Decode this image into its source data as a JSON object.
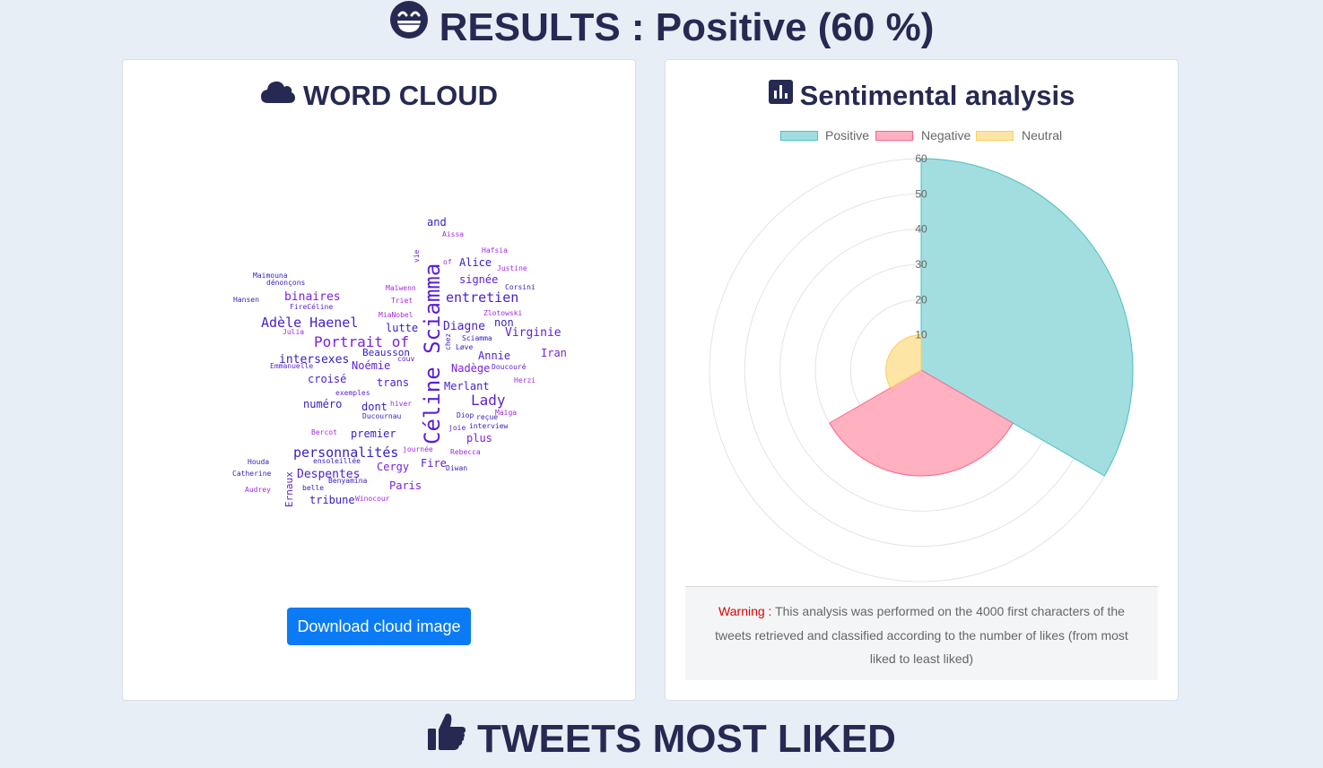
{
  "results": {
    "icon": "grinning-face-icon",
    "title": "RESULTS : Positive (60 %)"
  },
  "word_cloud": {
    "icon": "cloud-icon",
    "title": "WORD CLOUD",
    "download_label": "Download cloud image",
    "words": [
      "Céline Sciamma",
      "Portrait of",
      "Adèle Haenel",
      "Lady",
      "entretien",
      "Virginie",
      "personnalités",
      "Despentes",
      "binaires",
      "intersexes",
      "Noémie",
      "croisé",
      "numéro",
      "dont",
      "trans",
      "premier",
      "lutte",
      "Diagne",
      "non",
      "Iran",
      "Annie",
      "Nadège",
      "Merlant",
      "plus",
      "Cergy",
      "Fire",
      "Paris",
      "tribune",
      "Alice",
      "signée",
      "and",
      "Beausson",
      "Maimouna",
      "dénonçons",
      "Hansen",
      "FireCéline",
      "Julia",
      "Emmanuelle",
      "exemples",
      "Bercot",
      "Houda",
      "Catherine",
      "Audrey",
      "Ernaux",
      "belle",
      "Benyamina",
      "ensoleillée",
      "Winocour",
      "journée",
      "hiver",
      "Ducournau",
      "Diop",
      "reçue",
      "Maïga",
      "joie",
      "interview",
      "Rebecca",
      "Diwan",
      "Herzi",
      "Doucouré",
      "couv",
      "Løve",
      "Sciamma",
      "chez",
      "Zlotowski",
      "MiaNobel",
      "Triet",
      "Maïwenn",
      "Corsini",
      "Justine",
      "Hafsia",
      "Aissa",
      "vie",
      "of"
    ]
  },
  "sentiment": {
    "icon": "bar-chart-icon",
    "title": "Sentimental analysis",
    "warning_label": "Warning :",
    "warning_text": "This analysis was performed on the 4000 first characters of the tweets retrieved and classified according to the number of likes (from most liked to least liked)"
  },
  "chart_data": {
    "type": "polarArea",
    "categories": [
      "Positive",
      "Negative",
      "Neutral"
    ],
    "values": [
      60,
      30,
      10
    ],
    "colors": [
      "#a2dedf",
      "#ffb0c1",
      "#fde5a6"
    ],
    "border_colors": [
      "#4bc0c0",
      "#ff6384",
      "#ffcd56"
    ],
    "r_ticks": [
      "10",
      "20",
      "30",
      "40",
      "50",
      "60"
    ],
    "rlim": [
      0,
      60
    ],
    "legend_position": "top"
  },
  "tweets": {
    "icon": "thumbs-up-icon",
    "title": "TWEETS MOST LIKED"
  }
}
